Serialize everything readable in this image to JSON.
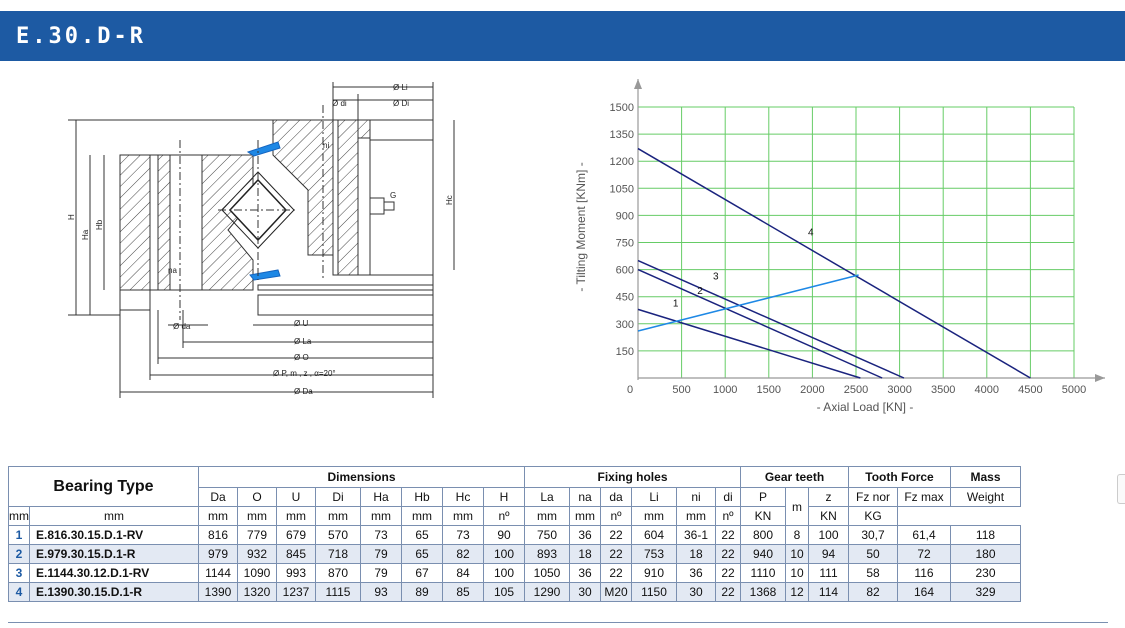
{
  "header": {
    "title": "E.30.D-R",
    "color": "#1d5aa3"
  },
  "drawing": {
    "labels": {
      "Li": "Ø Li",
      "di": "Ø di",
      "Di": "Ø Di",
      "ni": "ni",
      "G": "G",
      "Hc": "Hc",
      "H": "H",
      "Ha": "Ha",
      "Hb": "Hb",
      "na": "na",
      "da": "Ø da",
      "U": "Ø U",
      "La": "Ø La",
      "O": "Ø O",
      "Pmz": "Ø P, m , z , α=20°",
      "Da": "Ø Da"
    }
  },
  "chart_data": {
    "type": "line",
    "xlabel": "-  Axial Load  [KN]  -",
    "ylabel": "-  Tilting Moment  [KNm]  -",
    "xlim": [
      0,
      5000
    ],
    "ylim": [
      0,
      1500
    ],
    "x_ticks": [
      "0",
      "500",
      "1000",
      "1500",
      "2000",
      "2500",
      "3000",
      "3500",
      "4000",
      "4500",
      "5000"
    ],
    "y_ticks": [
      "150",
      "300",
      "450",
      "600",
      "750",
      "900",
      "1050",
      "1200",
      "1350",
      "1500"
    ],
    "y_zero_label": "0",
    "grid": true,
    "grid_color": "#66cc66",
    "series": [
      {
        "name": "1",
        "color": "#1a237e",
        "x": [
          0,
          2550
        ],
        "y": [
          380,
          0
        ]
      },
      {
        "name": "2",
        "color": "#1a237e",
        "x": [
          0,
          2800
        ],
        "y": [
          600,
          0
        ]
      },
      {
        "name": "3",
        "color": "#1a237e",
        "x": [
          0,
          3050
        ],
        "y": [
          650,
          0
        ]
      },
      {
        "name": "4",
        "color": "#1a237e",
        "x": [
          0,
          4500
        ],
        "y": [
          1270,
          0
        ]
      },
      {
        "name": "",
        "color": "#1e88e5",
        "x": [
          0,
          2530
        ],
        "y": [
          260,
          570
        ]
      }
    ],
    "curve_labels": [
      {
        "text": "1",
        "x": 400,
        "y": 395
      },
      {
        "text": "2",
        "x": 680,
        "y": 465
      },
      {
        "text": "3",
        "x": 860,
        "y": 545
      },
      {
        "text": "4",
        "x": 1950,
        "y": 790
      }
    ]
  },
  "table": {
    "title": "Bearing Type",
    "groups": [
      {
        "label": "Dimensions",
        "span": 8
      },
      {
        "label": "Fixing holes",
        "span": 6
      },
      {
        "label": "Gear teeth",
        "span": 3
      },
      {
        "label": "Tooth Force",
        "span": 2
      },
      {
        "label": "Mass",
        "span": 1
      }
    ],
    "columns": [
      {
        "name": "Da",
        "unit": "mm",
        "w": 38
      },
      {
        "name": "O",
        "unit": "mm",
        "w": 38
      },
      {
        "name": "U",
        "unit": "mm",
        "w": 38
      },
      {
        "name": "Di",
        "unit": "mm",
        "w": 44
      },
      {
        "name": "Ha",
        "unit": "mm",
        "w": 40
      },
      {
        "name": "Hb",
        "unit": "mm",
        "w": 40
      },
      {
        "name": "Hc",
        "unit": "mm",
        "w": 40
      },
      {
        "name": "H",
        "unit": "mm",
        "w": 40
      },
      {
        "name": "La",
        "unit": "mm",
        "w": 44
      },
      {
        "name": "na",
        "unit": "nº",
        "w": 30
      },
      {
        "name": "da",
        "unit": "mm",
        "w": 30
      },
      {
        "name": "Li",
        "unit": "mm",
        "w": 44
      },
      {
        "name": "ni",
        "unit": "nº",
        "w": 38
      },
      {
        "name": "di",
        "unit": "mm",
        "w": 24
      },
      {
        "name": "P",
        "unit": "mm",
        "w": 44
      },
      {
        "name": "m",
        "unit": "",
        "w": 22
      },
      {
        "name": "z",
        "unit": "nº",
        "w": 39
      },
      {
        "name": "Fz nor",
        "unit": "KN",
        "w": 48
      },
      {
        "name": "Fz max",
        "unit": "KN",
        "w": 52
      },
      {
        "name": "Weight",
        "unit": "KG",
        "w": 69
      }
    ],
    "rows": [
      {
        "idx": "1",
        "type": "E.816.30.15.D.1-RV",
        "values": [
          "816",
          "779",
          "679",
          "570",
          "73",
          "65",
          "73",
          "90",
          "750",
          "36",
          "22",
          "604",
          "36-1",
          "22",
          "800",
          "8",
          "100",
          "30,7",
          "61,4",
          "118"
        ]
      },
      {
        "idx": "2",
        "type": "E.979.30.15.D.1-R",
        "values": [
          "979",
          "932",
          "845",
          "718",
          "79",
          "65",
          "82",
          "100",
          "893",
          "18",
          "22",
          "753",
          "18",
          "22",
          "940",
          "10",
          "94",
          "50",
          "72",
          "180"
        ]
      },
      {
        "idx": "3",
        "type": "E.1144.30.12.D.1-RV",
        "values": [
          "1144",
          "1090",
          "993",
          "870",
          "79",
          "67",
          "84",
          "100",
          "1050",
          "36",
          "22",
          "910",
          "36",
          "22",
          "1110",
          "10",
          "111",
          "58",
          "116",
          "230"
        ]
      },
      {
        "idx": "4",
        "type": "E.1390.30.15.D.1-R",
        "values": [
          "1390",
          "1320",
          "1237",
          "1115",
          "93",
          "89",
          "85",
          "105",
          "1290",
          "30",
          "M20",
          "1150",
          "30",
          "22",
          "1368",
          "12",
          "114",
          "82",
          "164",
          "329"
        ]
      }
    ]
  }
}
